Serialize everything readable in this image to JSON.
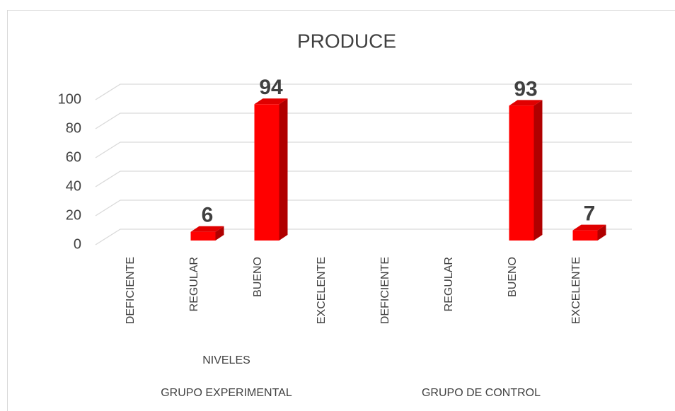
{
  "chart_data": {
    "type": "bar3d",
    "title": "PRODUCE",
    "categories": [
      "DEFICIENTE",
      "REGULAR",
      "BUENO",
      "EXCELENTE",
      "DEFICIENTE",
      "REGULAR",
      "BUENO",
      "EXCELENTE"
    ],
    "groups": [
      "GRUPO EXPERIMENTAL",
      "GRUPO DE CONTROL"
    ],
    "x_label": "NIVELES",
    "values": [
      null,
      6,
      94,
      null,
      null,
      null,
      93,
      7
    ],
    "color": "#ff0000",
    "ylim": [
      0,
      100
    ],
    "yticks": [
      0,
      20,
      40,
      60,
      80,
      100
    ],
    "grid": true
  }
}
